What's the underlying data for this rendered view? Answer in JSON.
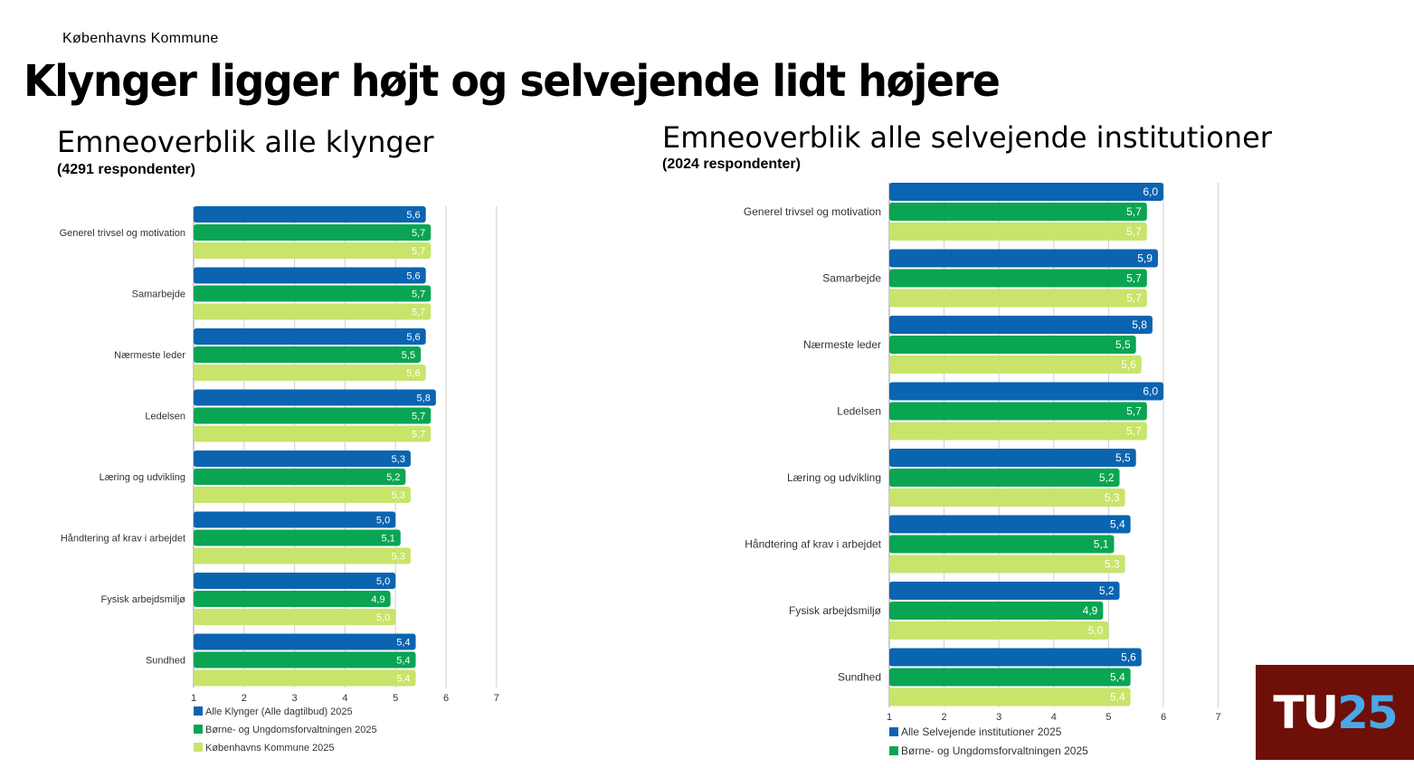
{
  "organization": "Københavns Kommune",
  "headline": "Klynger ligger højt og selvejende lidt højere",
  "logo": {
    "part1": "TU",
    "part2": "25"
  },
  "colors": {
    "dark_blue": "#0b64b0",
    "green": "#0aa552",
    "light_green": "#c8e46a"
  },
  "chart_data": [
    {
      "type": "bar",
      "orientation": "horizontal",
      "title": "Emneoverblik alle klynger",
      "subtitle": "(4291 respondenter)",
      "categories": [
        "Generel trivsel og motivation",
        "Samarbejde",
        "Nærmeste leder",
        "Ledelsen",
        "Læring og udvikling",
        "Håndtering af krav i arbejdet",
        "Fysisk arbejdsmiljø",
        "Sundhed"
      ],
      "series": [
        {
          "name": "Alle Klynger (Alle dagtilbud) 2025",
          "color": "#0b64b0",
          "values": [
            5.6,
            5.6,
            5.6,
            5.8,
            5.3,
            5.0,
            5.0,
            5.4
          ],
          "labels": [
            "5,6",
            "5,6",
            "5,6",
            "5,8",
            "5,3",
            "5,0",
            "5,0",
            "5,4"
          ]
        },
        {
          "name": "Børne- og Ungdomsforvaltningen 2025",
          "color": "#0aa552",
          "values": [
            5.7,
            5.7,
            5.5,
            5.7,
            5.2,
            5.1,
            4.9,
            5.4
          ],
          "labels": [
            "5,7",
            "5,7",
            "5,5",
            "5,7",
            "5,2",
            "5,1",
            "4,9",
            "5,4"
          ]
        },
        {
          "name": "Københavns Kommune 2025",
          "color": "#c8e46a",
          "values": [
            5.7,
            5.7,
            5.6,
            5.7,
            5.3,
            5.3,
            5.0,
            5.4
          ],
          "labels": [
            "5,7",
            "5,7",
            "5,6",
            "5,7",
            "5,3",
            "5,3",
            "5,0",
            "5,4"
          ]
        }
      ],
      "xlim": [
        1,
        7
      ],
      "ticks": [
        "1",
        "2",
        "3",
        "4",
        "5",
        "6",
        "7"
      ],
      "legend_position": "bottom"
    },
    {
      "type": "bar",
      "orientation": "horizontal",
      "title": "Emneoverblik alle selvejende institutioner",
      "subtitle": "(2024 respondenter)",
      "categories": [
        "Generel trivsel og motivation",
        "Samarbejde",
        "Nærmeste leder",
        "Ledelsen",
        "Læring og udvikling",
        "Håndtering af krav i arbejdet",
        "Fysisk arbejdsmiljø",
        "Sundhed"
      ],
      "series": [
        {
          "name": "Alle Selvejende institutioner 2025",
          "color": "#0b64b0",
          "values": [
            6.0,
            5.9,
            5.8,
            6.0,
            5.5,
            5.4,
            5.2,
            5.6
          ],
          "labels": [
            "6,0",
            "5,9",
            "5,8",
            "6,0",
            "5,5",
            "5,4",
            "5,2",
            "5,6"
          ]
        },
        {
          "name": "Børne- og Ungdomsforvaltningen 2025",
          "color": "#0aa552",
          "values": [
            5.7,
            5.7,
            5.5,
            5.7,
            5.2,
            5.1,
            4.9,
            5.4
          ],
          "labels": [
            "5,7",
            "5,7",
            "5,5",
            "5,7",
            "5,2",
            "5,1",
            "4,9",
            "5,4"
          ]
        },
        {
          "name": "",
          "color": "#c8e46a",
          "values": [
            5.7,
            5.7,
            5.6,
            5.7,
            5.3,
            5.3,
            5.0,
            5.4
          ],
          "labels": [
            "5,7",
            "5,7",
            "5,6",
            "5,7",
            "5,3",
            "5,3",
            "5,0",
            "5,4"
          ]
        }
      ],
      "xlim": [
        1,
        7
      ],
      "ticks": [
        "1",
        "2",
        "3",
        "4",
        "5",
        "6",
        "7"
      ],
      "legend_position": "bottom"
    }
  ]
}
